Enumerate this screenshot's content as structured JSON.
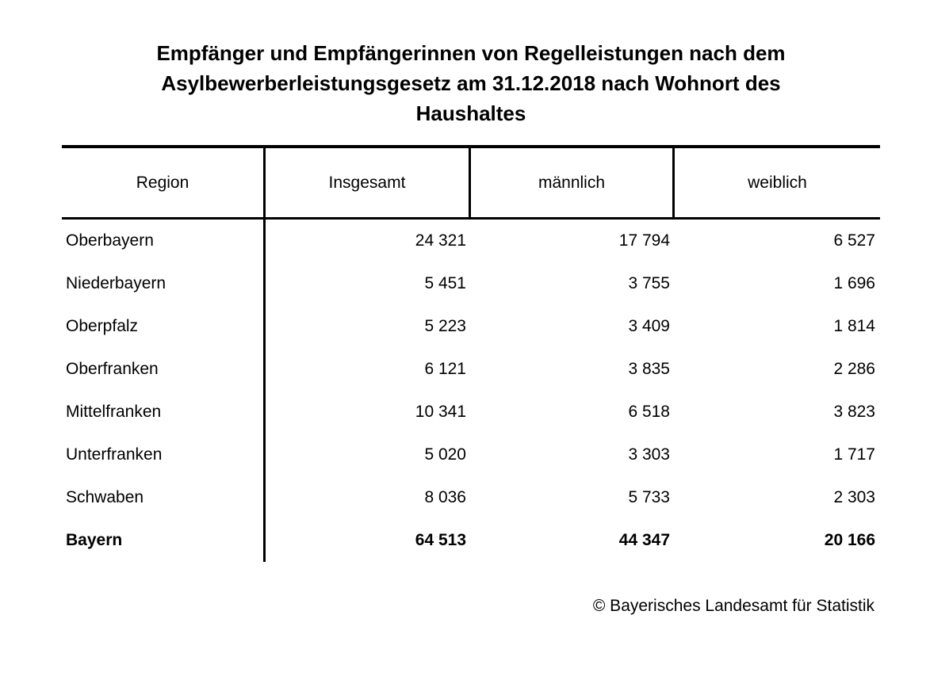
{
  "title_lines": [
    "Empfänger und Empfängerinnen von Regelleistungen nach dem",
    "Asylbewerberleistungsgesetz am 31.12.2018 nach Wohnort des",
    "Haushaltes"
  ],
  "table": {
    "columns": [
      "Region",
      "Insgesamt",
      "männlich",
      "weiblich"
    ],
    "rows": [
      {
        "region": "Oberbayern",
        "insgesamt": "24 321",
        "maennlich": "17 794",
        "weiblich": "6 527"
      },
      {
        "region": "Niederbayern",
        "insgesamt": "5 451",
        "maennlich": "3 755",
        "weiblich": "1 696"
      },
      {
        "region": "Oberpfalz",
        "insgesamt": "5 223",
        "maennlich": "3 409",
        "weiblich": "1 814"
      },
      {
        "region": "Oberfranken",
        "insgesamt": "6 121",
        "maennlich": "3 835",
        "weiblich": "2 286"
      },
      {
        "region": "Mittelfranken",
        "insgesamt": "10 341",
        "maennlich": "6 518",
        "weiblich": "3 823"
      },
      {
        "region": "Unterfranken",
        "insgesamt": "5 020",
        "maennlich": "3 303",
        "weiblich": "1 717"
      },
      {
        "region": "Schwaben",
        "insgesamt": "8 036",
        "maennlich": "5 733",
        "weiblich": "2 303"
      },
      {
        "region": "Bayern",
        "insgesamt": "64 513",
        "maennlich": "44 347",
        "weiblich": "20 166"
      }
    ]
  },
  "footer": {
    "copyright": "© Bayerisches Landesamt für Statistik"
  },
  "colors": {
    "text": "#000000",
    "background": "#ffffff",
    "rule": "#000000"
  },
  "chart_data": {
    "type": "table",
    "title": "Empfänger und Empfängerinnen von Regelleistungen nach dem Asylbewerberleistungsgesetz am 31.12.2018 nach Wohnort des Haushaltes",
    "columns": [
      "Region",
      "Insgesamt",
      "männlich",
      "weiblich"
    ],
    "rows": [
      [
        "Oberbayern",
        24321,
        17794,
        6527
      ],
      [
        "Niederbayern",
        5451,
        3755,
        1696
      ],
      [
        "Oberpfalz",
        5223,
        3409,
        1814
      ],
      [
        "Oberfranken",
        6121,
        3835,
        2286
      ],
      [
        "Mittelfranken",
        10341,
        6518,
        3823
      ],
      [
        "Unterfranken",
        5020,
        3303,
        1717
      ],
      [
        "Schwaben",
        8036,
        5733,
        2303
      ],
      [
        "Bayern",
        64513,
        44347,
        20166
      ]
    ],
    "total_row": "Bayern",
    "source": "© Bayerisches Landesamt für Statistik"
  }
}
